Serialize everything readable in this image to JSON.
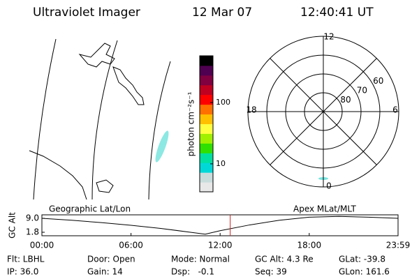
{
  "header": {
    "title": "Ultraviolet Imager",
    "date": "12 Mar 07",
    "time": "12:40:41 UT"
  },
  "colorbar": {
    "label": "photon cm⁻²s⁻¹",
    "log": true,
    "clim": [
      3.5,
      577
    ],
    "ticks": [
      10,
      100
    ],
    "colors": [
      "#e8e8e8",
      "#c8dcdc",
      "#00d8d8",
      "#00e0a0",
      "#30e000",
      "#a0f000",
      "#ffff40",
      "#ffc000",
      "#ff7000",
      "#ff0000",
      "#c00020",
      "#800040",
      "#500050",
      "#000000"
    ]
  },
  "polar": {
    "rlim": [
      90,
      50
    ],
    "ring_ticks": [
      80,
      70,
      60
    ],
    "mlt_ticks": [
      12,
      18,
      6,
      0
    ]
  },
  "chart_data": {
    "type": "line",
    "ylabel": "GC Alt",
    "label_left": "Geographic Lat/Lon",
    "label_right": "Apex MLat/MLT",
    "x": [
      0,
      2,
      4,
      6,
      8,
      10,
      11,
      12,
      14,
      16,
      18,
      20,
      22,
      23.98
    ],
    "series": [
      {
        "name": "GC Alt",
        "color": "#000000",
        "values": [
          9.0,
          8.0,
          6.8,
          5.4,
          3.8,
          1.8,
          0.8,
          2.6,
          5.6,
          8.0,
          9.6,
          10.0,
          9.6,
          9.0
        ]
      }
    ],
    "xlim": [
      0,
      23.98
    ],
    "ylim": [
      0,
      10.8
    ],
    "xticks": [
      {
        "value": 0,
        "label": "00:00"
      },
      {
        "value": 6,
        "label": "06:00"
      },
      {
        "value": 12,
        "label": "12:00"
      },
      {
        "value": 18,
        "label": "18:00"
      },
      {
        "value": 23.98,
        "label": "23:59"
      }
    ],
    "yticks": [
      {
        "value": 1.8,
        "label": "1.8"
      },
      {
        "value": 9,
        "label": "9.0"
      }
    ],
    "marker_x": 12.68,
    "marker_color": "#d02020"
  },
  "footer": {
    "rows": [
      [
        "Flt: LBHL",
        "Door: Open",
        "Mode: Normal",
        "GC Alt: 4.3 Re",
        "GLat: -39.8"
      ],
      [
        "IP: 36.0",
        "Gain: 14",
        "Dsp:   -0.1",
        "Seq: 39",
        "GLon: 161.6"
      ]
    ]
  }
}
